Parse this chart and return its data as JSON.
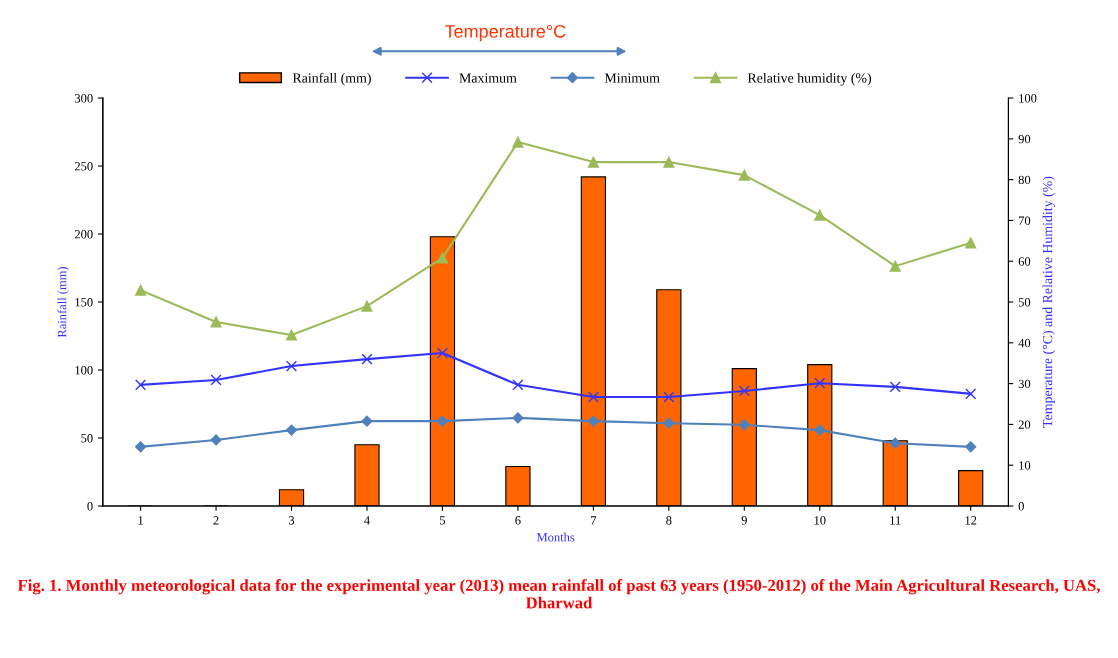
{
  "chart_data": {
    "type": "bar",
    "categories": [
      "1",
      "2",
      "3",
      "4",
      "5",
      "6",
      "7",
      "8",
      "9",
      "10",
      "11",
      "12"
    ],
    "xlabel": "Months",
    "ylabel": "Rainfall (mm)",
    "y2label": "Temperature (°C) and Relative Humidity (%)",
    "legend_title": "Temperature°C",
    "ylim": [
      0,
      300
    ],
    "yticks": [
      0,
      50,
      100,
      150,
      200,
      250,
      300
    ],
    "y2lim": [
      0,
      100
    ],
    "y2ticks": [
      0,
      10,
      20,
      30,
      40,
      50,
      60,
      70,
      80,
      90,
      100
    ],
    "legend": "top",
    "grid": false,
    "series": [
      {
        "name": "Rainfall (mm)",
        "color": "#ff6600",
        "values": [
          0,
          0,
          12,
          45,
          198,
          29,
          242,
          159,
          101,
          104,
          48,
          26
        ]
      },
      {
        "name": "Maximum",
        "type": "line",
        "axis": "y2",
        "marker": "cross",
        "color": "#3333ff",
        "values": [
          29.7,
          30.9,
          34.3,
          36.0,
          37.5,
          29.7,
          26.7,
          26.7,
          28.2,
          30.1,
          29.2,
          27.5
        ]
      },
      {
        "name": "Minimum",
        "type": "line",
        "axis": "y2",
        "marker": "diamond",
        "color": "#4f81bd",
        "values": [
          14.5,
          16.2,
          18.6,
          20.8,
          20.8,
          21.6,
          20.8,
          20.3,
          19.9,
          18.6,
          15.4,
          14.5
        ]
      },
      {
        "name": "Relative humidity (%)",
        "type": "line",
        "axis": "y2",
        "marker": "triangle",
        "color": "#9bbb59",
        "values": [
          52.9,
          45.1,
          41.9,
          49.0,
          60.8,
          89.2,
          84.3,
          84.3,
          81.1,
          71.3,
          58.8,
          64.5
        ]
      }
    ],
    "annotations": [
      "Fig. 1. Monthly meteorological data for the experimental year (2013) mean rainfall of past 63 years (1950-2012) of the Main Agricultural Research, UAS, Dharwad"
    ]
  }
}
